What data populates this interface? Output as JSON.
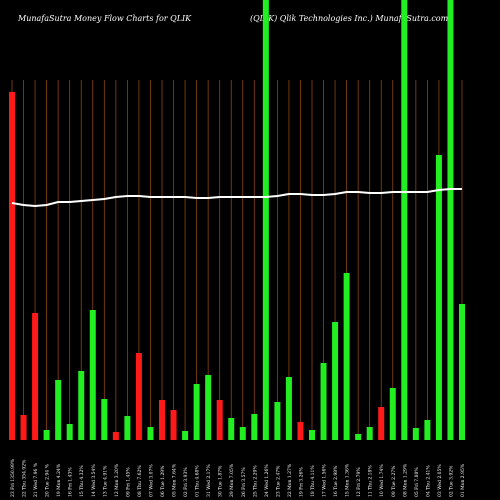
{
  "chart_data": {
    "type": "bar",
    "title": "MunafaSutra  Money Flow  Charts for QLIK",
    "subtitle": "(QLIK) Qlik Technologies Inc.) MunafaSutra.com",
    "categories": [
      "23 Fri 1350.99%",
      "22 Thu 354.92%",
      "21 Wed 7.96 %",
      "20 Tue 2.94 %",
      "19 Mon 4.24%",
      "16 Fri 1.43%",
      "15 Thu 4.32%",
      "14 Wed 3.54%",
      "13 Tue 4.91%",
      "12 Mon 3.20%",
      "09 Fri 1.45%",
      "08 Thu 7.62%",
      "07 Wed 3.07%",
      "06 Tue 1.29%",
      "05 Mon 7.64%",
      "02 Fri 3.93%",
      "01 Thu 4.68%",
      "31 Wed 2.17%",
      "30 Tue 1.87%",
      "29 Mon 7.05%",
      "26 Fri 3.57%",
      "25 Thu 2.29%",
      "24 Wed 1.26%",
      "23 Tue 2.47%",
      "22 Mon 1.27%",
      "19 Fri 3.26%",
      "18 Thu 4.11%",
      "17 Wed 1.56%",
      "16 Tue 2.98%",
      "15 Mon 1.36%",
      "12 Fri 2.79%",
      "11 Thu 2.18%",
      "10 Wed 1.74%",
      "09 Tue 2.27%",
      "08 Mon 1.29%",
      "05 Fri 7.88%",
      "04 Thu 2.41%",
      "03 Wed 2.05%",
      "02 Tue 3.92%",
      "01 Mon 2.95%"
    ],
    "values": [
      348,
      25,
      127,
      10,
      60,
      16,
      69,
      130,
      41,
      8,
      24,
      87,
      13,
      40,
      30,
      9,
      56,
      65,
      40,
      22,
      13,
      26,
      440,
      38,
      63,
      18,
      10,
      77,
      118,
      167,
      6,
      13,
      33,
      52,
      440,
      12,
      20,
      285,
      440,
      136
    ],
    "colors": [
      "#ff1a1a",
      "#ff1a1a",
      "#ff1a1a",
      "#22ee22",
      "#22ee22",
      "#22ee22",
      "#22ee22",
      "#22ee22",
      "#22ee22",
      "#ff1a1a",
      "#22ee22",
      "#ff1a1a",
      "#22ee22",
      "#ff1a1a",
      "#ff1a1a",
      "#22ee22",
      "#22ee22",
      "#22ee22",
      "#ff1a1a",
      "#22ee22",
      "#22ee22",
      "#22ee22",
      "#22ee22",
      "#22ee22",
      "#22ee22",
      "#ff1a1a",
      "#22ee22",
      "#22ee22",
      "#22ee22",
      "#22ee22",
      "#22ee22",
      "#22ee22",
      "#ff1a1a",
      "#22ee22",
      "#22ee22",
      "#22ee22",
      "#22ee22",
      "#22ee22",
      "#22ee22",
      "#22ee22"
    ],
    "line": [
      237,
      235,
      234,
      235,
      238,
      238,
      239,
      240,
      241,
      243,
      244,
      244,
      243,
      243,
      243,
      243,
      242,
      242,
      243,
      243,
      243,
      243,
      243,
      244,
      246,
      246,
      245,
      245,
      246,
      248,
      248,
      247,
      247,
      248,
      248,
      248,
      248,
      250,
      251,
      251
    ],
    "ylim": [
      0,
      440
    ]
  }
}
